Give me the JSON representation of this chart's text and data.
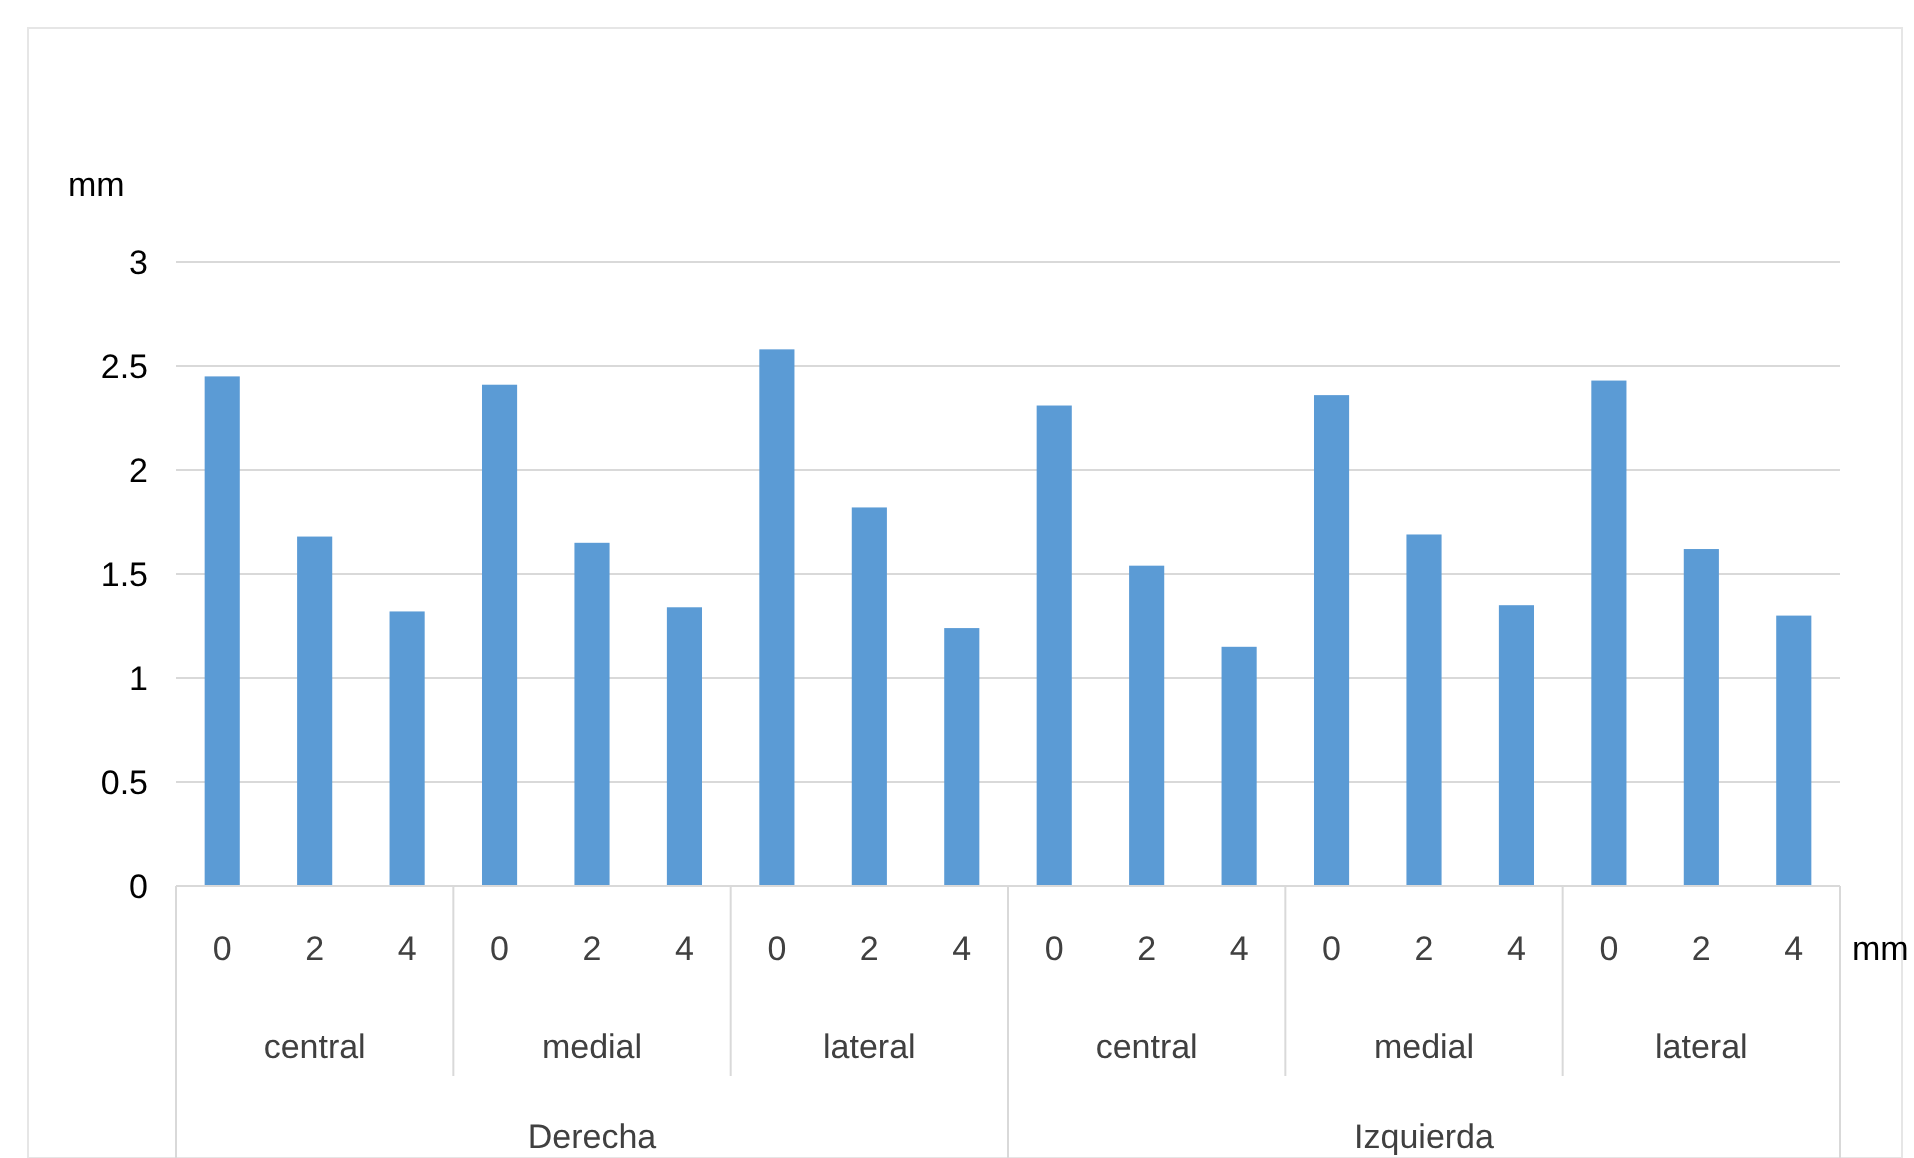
{
  "chart_data": {
    "type": "bar",
    "xlabel": "mm",
    "ylabel": "mm",
    "categories": [
      "0",
      "2",
      "4",
      "0",
      "2",
      "4",
      "0",
      "2",
      "4",
      "0",
      "2",
      "4",
      "0",
      "2",
      "4",
      "0",
      "2",
      "4"
    ],
    "values": [
      2.45,
      1.68,
      1.32,
      2.41,
      1.65,
      1.34,
      2.58,
      1.82,
      1.24,
      2.31,
      1.54,
      1.15,
      2.36,
      1.69,
      1.35,
      2.43,
      1.62,
      1.3
    ],
    "color": "#5b9bd5",
    "ylim": [
      0,
      3
    ],
    "yticks": [
      0,
      0.5,
      1,
      1.5,
      2,
      2.5,
      3
    ],
    "grid": "y",
    "annotations": [
      "central",
      "medial",
      "lateral",
      "central",
      "medial",
      "lateral",
      "Derecha",
      "Izquierda"
    ]
  }
}
